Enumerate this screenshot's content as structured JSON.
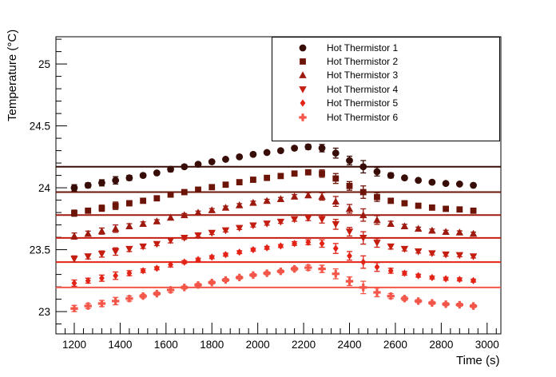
{
  "chart_data": {
    "type": "scatter",
    "title": "",
    "xlabel": "Time (s)",
    "ylabel": "Temperature (°C)",
    "xlim": [
      1120,
      3060
    ],
    "ylim": [
      22.82,
      25.22
    ],
    "x_major_ticks": [
      1200,
      1400,
      1600,
      1800,
      2000,
      2200,
      2400,
      2600,
      2800,
      3000
    ],
    "y_major_ticks": [
      23,
      23.5,
      24,
      24.5,
      25
    ],
    "x_minor_step": 40,
    "y_minor_step": 0.1,
    "grid": false,
    "legend_position": "top-right",
    "x": [
      1200,
      1260,
      1320,
      1380,
      1440,
      1500,
      1560,
      1620,
      1680,
      1740,
      1800,
      1860,
      1920,
      1980,
      2040,
      2100,
      2160,
      2220,
      2280,
      2340,
      2400,
      2460,
      2520,
      2580,
      2640,
      2700,
      2760,
      2820,
      2880,
      2940
    ],
    "errors": [
      0.025,
      0.02,
      0.025,
      0.03,
      0.02,
      0.015,
      0.012,
      0.02,
      0.012,
      0.012,
      0.012,
      0.012,
      0.012,
      0.012,
      0.012,
      0.012,
      0.015,
      0.02,
      0.03,
      0.04,
      0.035,
      0.05,
      0.035,
      0.02,
      0.015,
      0.012,
      0.012,
      0.012,
      0.012,
      0.012
    ],
    "series": [
      {
        "name": "Hot Thermistor 1",
        "marker": "circle",
        "color": "#380d07",
        "mean_line": 24.17,
        "values": [
          24.0,
          24.02,
          24.04,
          24.06,
          24.08,
          24.1,
          24.12,
          24.15,
          24.17,
          24.19,
          24.21,
          24.23,
          24.25,
          24.27,
          24.285,
          24.3,
          24.32,
          24.33,
          24.32,
          24.28,
          24.22,
          24.17,
          24.13,
          24.1,
          24.08,
          24.06,
          24.045,
          24.035,
          24.03,
          24.02
        ]
      },
      {
        "name": "Hot Thermistor 2",
        "marker": "square",
        "color": "#6d1408",
        "mean_line": 23.965,
        "values": [
          23.795,
          23.815,
          23.835,
          23.855,
          23.875,
          23.895,
          23.915,
          23.945,
          23.965,
          23.985,
          24.005,
          24.025,
          24.045,
          24.065,
          24.08,
          24.095,
          24.115,
          24.125,
          24.115,
          24.075,
          24.015,
          23.965,
          23.925,
          23.895,
          23.875,
          23.855,
          23.84,
          23.83,
          23.825,
          23.815
        ]
      },
      {
        "name": "Hot Thermistor 3",
        "marker": "triangle-up",
        "color": "#9e1a0f",
        "mean_line": 23.78,
        "values": [
          23.61,
          23.63,
          23.65,
          23.67,
          23.69,
          23.71,
          23.73,
          23.76,
          23.78,
          23.8,
          23.82,
          23.84,
          23.86,
          23.88,
          23.895,
          23.91,
          23.93,
          23.94,
          23.93,
          23.89,
          23.83,
          23.78,
          23.74,
          23.71,
          23.69,
          23.67,
          23.655,
          23.645,
          23.64,
          23.63
        ]
      },
      {
        "name": "Hot Thermistor 4",
        "marker": "triangle-down",
        "color": "#c51d10",
        "mean_line": 23.595,
        "values": [
          23.425,
          23.445,
          23.465,
          23.485,
          23.505,
          23.525,
          23.545,
          23.575,
          23.595,
          23.615,
          23.635,
          23.655,
          23.675,
          23.695,
          23.71,
          23.725,
          23.745,
          23.755,
          23.745,
          23.705,
          23.645,
          23.595,
          23.555,
          23.525,
          23.505,
          23.485,
          23.47,
          23.46,
          23.455,
          23.445
        ]
      },
      {
        "name": "Hot Thermistor 5",
        "marker": "diamond",
        "color": "#e42317",
        "mean_line": 23.4,
        "values": [
          23.23,
          23.25,
          23.27,
          23.29,
          23.31,
          23.33,
          23.35,
          23.38,
          23.4,
          23.42,
          23.44,
          23.46,
          23.48,
          23.5,
          23.515,
          23.53,
          23.55,
          23.56,
          23.55,
          23.51,
          23.45,
          23.4,
          23.36,
          23.33,
          23.31,
          23.29,
          23.275,
          23.265,
          23.26,
          23.25
        ]
      },
      {
        "name": "Hot Thermistor 6",
        "marker": "plus",
        "color": "#f35648",
        "mean_line": 23.195,
        "values": [
          23.025,
          23.045,
          23.065,
          23.085,
          23.105,
          23.125,
          23.145,
          23.175,
          23.195,
          23.215,
          23.235,
          23.255,
          23.275,
          23.295,
          23.31,
          23.325,
          23.345,
          23.355,
          23.345,
          23.305,
          23.245,
          23.195,
          23.155,
          23.125,
          23.105,
          23.085,
          23.07,
          23.06,
          23.055,
          23.045
        ]
      }
    ]
  }
}
